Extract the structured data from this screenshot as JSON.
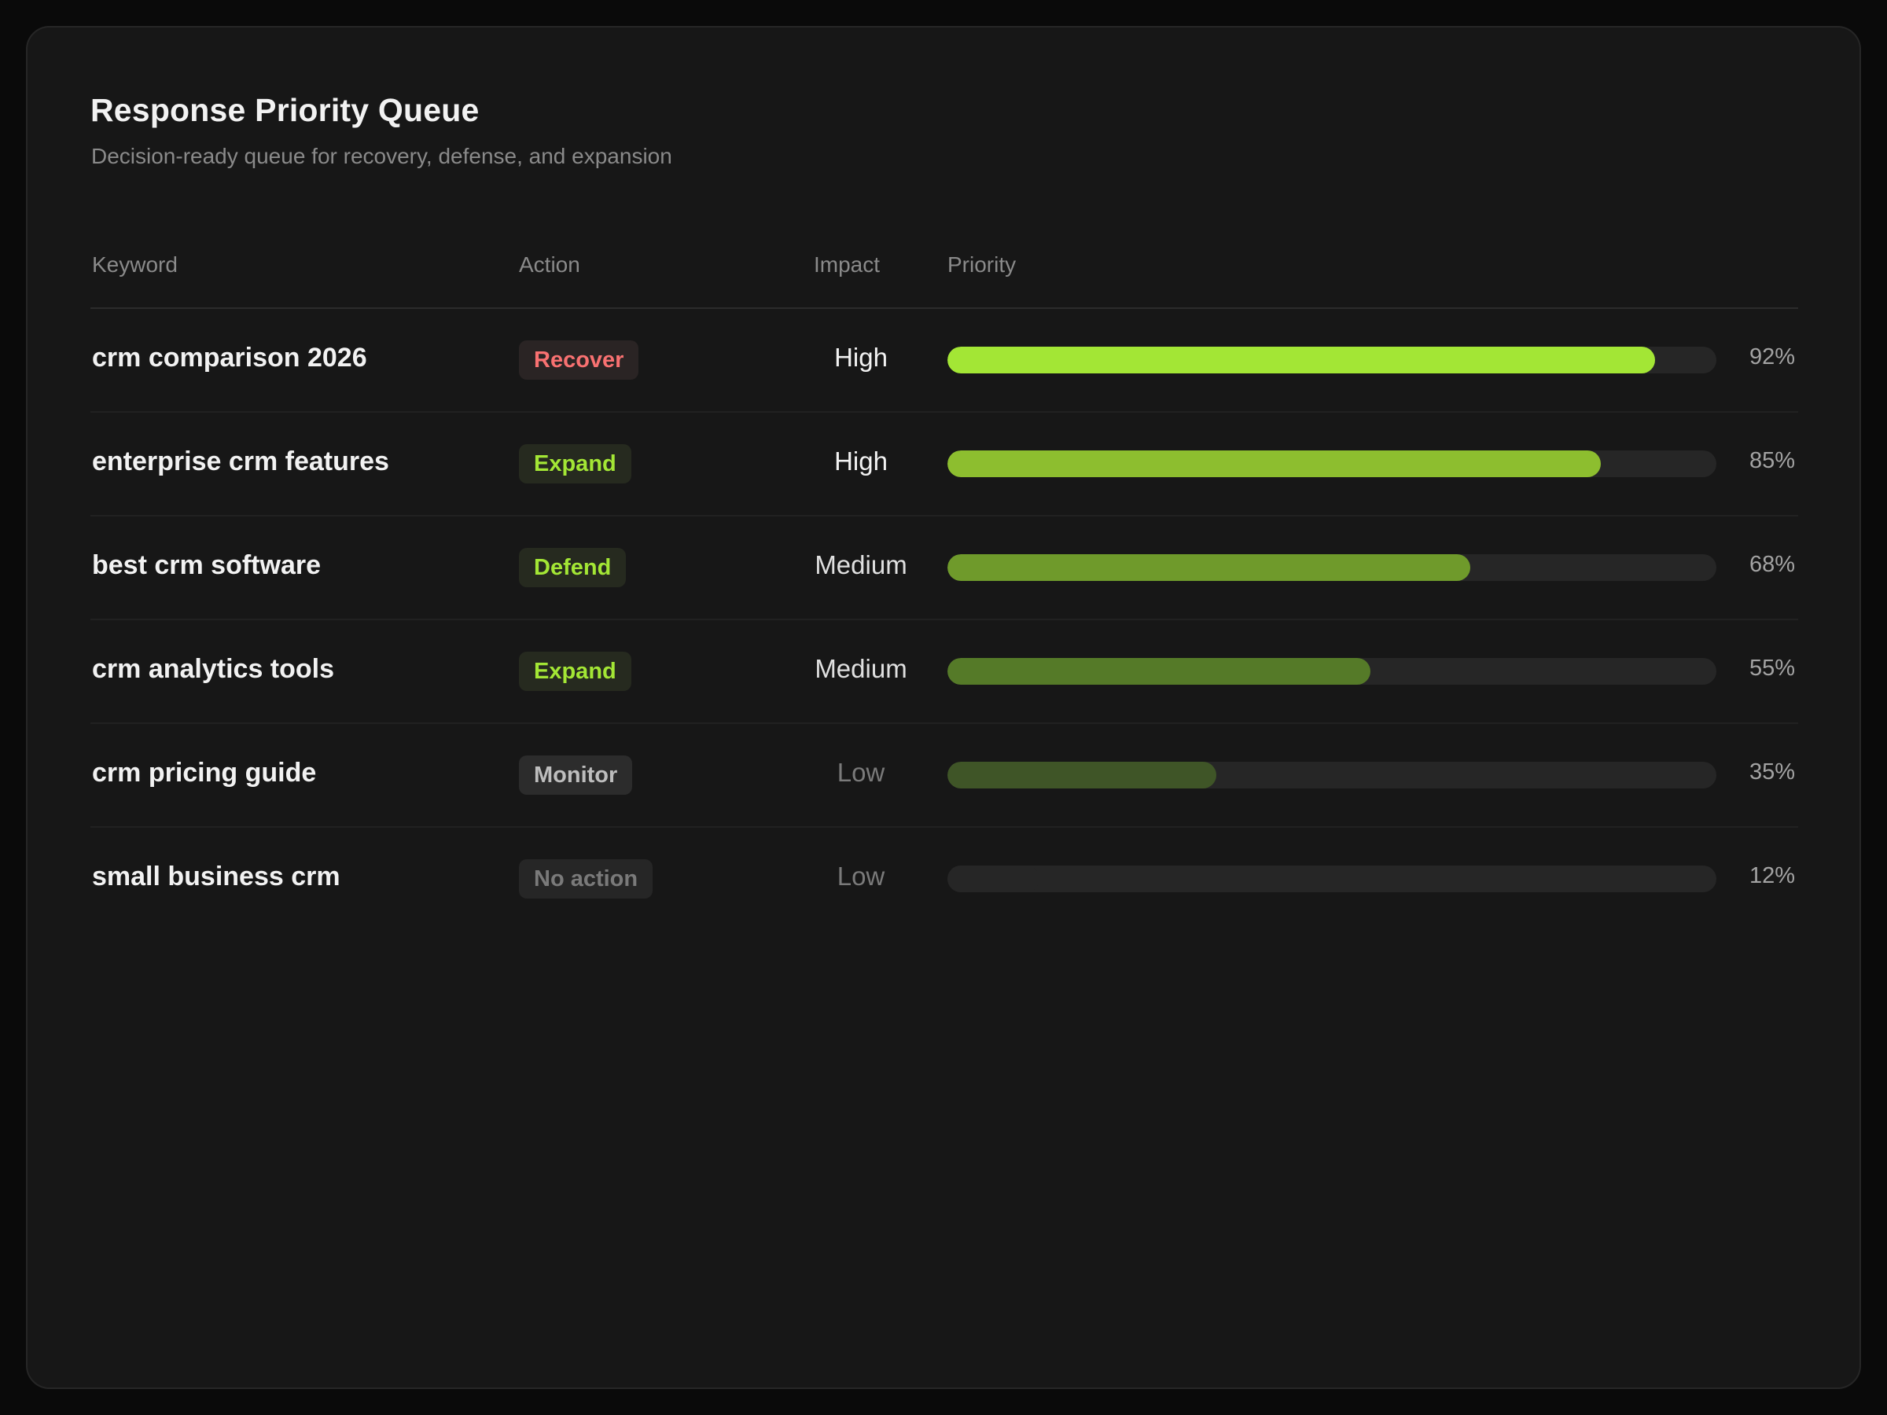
{
  "panel": {
    "title": "Response Priority Queue",
    "subtitle": "Decision-ready queue for recovery, defense, and expansion"
  },
  "table": {
    "columns": {
      "keyword": "Keyword",
      "action": "Action",
      "impact": "Impact",
      "priority": "Priority"
    },
    "rows": [
      {
        "keyword": "crm comparison 2026",
        "action": "Recover",
        "action_color": "#f87171",
        "action_bg": "#2a2424",
        "impact": "High",
        "impact_color": "#f2f2f2",
        "priority": 0.92,
        "priority_label": "92%",
        "bar_color": "#a3e635"
      },
      {
        "keyword": "enterprise crm features",
        "action": "Expand",
        "action_color": "#a3e635",
        "action_bg": "#262a1f",
        "impact": "High",
        "impact_color": "#f2f2f2",
        "priority": 0.85,
        "priority_label": "85%",
        "bar_color": "#8dbe2f"
      },
      {
        "keyword": "best crm software",
        "action": "Defend",
        "action_color": "#a3e635",
        "action_bg": "#262a1f",
        "impact": "Medium",
        "impact_color": "#e0e0e0",
        "priority": 0.68,
        "priority_label": "68%",
        "bar_color": "#6f9a2b"
      },
      {
        "keyword": "crm analytics tools",
        "action": "Expand",
        "action_color": "#a3e635",
        "action_bg": "#262a1f",
        "impact": "Medium",
        "impact_color": "#e0e0e0",
        "priority": 0.55,
        "priority_label": "55%",
        "bar_color": "#557a28"
      },
      {
        "keyword": "crm pricing guide",
        "action": "Monitor",
        "action_color": "#bdbdbd",
        "action_bg": "#2c2c2c",
        "impact": "Low",
        "impact_color": "#7a7a7a",
        "priority": 0.35,
        "priority_label": "35%",
        "bar_color": "#3f5527"
      },
      {
        "keyword": "small business crm",
        "action": "No action",
        "action_color": "#7a7a7a",
        "action_bg": "#262626",
        "impact": "Low",
        "impact_color": "#7a7a7a",
        "priority": 0.12,
        "priority_label": "12%",
        "bar_color": "#262626"
      }
    ]
  }
}
